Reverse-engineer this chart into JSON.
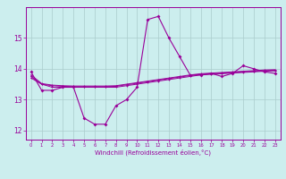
{
  "hours": [
    0,
    1,
    2,
    3,
    4,
    5,
    6,
    7,
    8,
    9,
    10,
    11,
    12,
    13,
    14,
    15,
    16,
    17,
    18,
    19,
    20,
    21,
    22,
    23
  ],
  "windchill": [
    13.9,
    13.3,
    13.3,
    13.4,
    13.4,
    12.4,
    12.2,
    12.2,
    12.8,
    13.0,
    13.4,
    15.6,
    15.7,
    15.0,
    14.4,
    13.8,
    13.8,
    13.85,
    13.75,
    13.85,
    14.1,
    14.0,
    13.9,
    13.85
  ],
  "temp_line1": [
    13.7,
    13.5,
    13.4,
    13.4,
    13.4,
    13.4,
    13.4,
    13.4,
    13.4,
    13.45,
    13.5,
    13.55,
    13.6,
    13.65,
    13.7,
    13.75,
    13.8,
    13.82,
    13.84,
    13.86,
    13.88,
    13.9,
    13.92,
    13.93
  ],
  "temp_line2": [
    13.75,
    13.5,
    13.45,
    13.43,
    13.42,
    13.42,
    13.42,
    13.42,
    13.43,
    13.48,
    13.53,
    13.58,
    13.63,
    13.68,
    13.73,
    13.78,
    13.82,
    13.84,
    13.86,
    13.88,
    13.9,
    13.92,
    13.94,
    13.95
  ],
  "temp_line3": [
    13.8,
    13.52,
    13.47,
    13.45,
    13.44,
    13.44,
    13.44,
    13.44,
    13.45,
    13.5,
    13.55,
    13.6,
    13.65,
    13.7,
    13.75,
    13.8,
    13.84,
    13.86,
    13.88,
    13.9,
    13.92,
    13.94,
    13.96,
    13.97
  ],
  "line_color": "#990099",
  "bg_color": "#cceeee",
  "grid_color": "#aacccc",
  "xlabel": "Windchill (Refroidissement éolien,°C)",
  "ylim": [
    11.7,
    16.0
  ],
  "xlim": [
    -0.5,
    23.5
  ],
  "yticks": [
    12,
    13,
    14,
    15
  ],
  "xticks": [
    0,
    1,
    2,
    3,
    4,
    5,
    6,
    7,
    8,
    9,
    10,
    11,
    12,
    13,
    14,
    15,
    16,
    17,
    18,
    19,
    20,
    21,
    22,
    23
  ]
}
